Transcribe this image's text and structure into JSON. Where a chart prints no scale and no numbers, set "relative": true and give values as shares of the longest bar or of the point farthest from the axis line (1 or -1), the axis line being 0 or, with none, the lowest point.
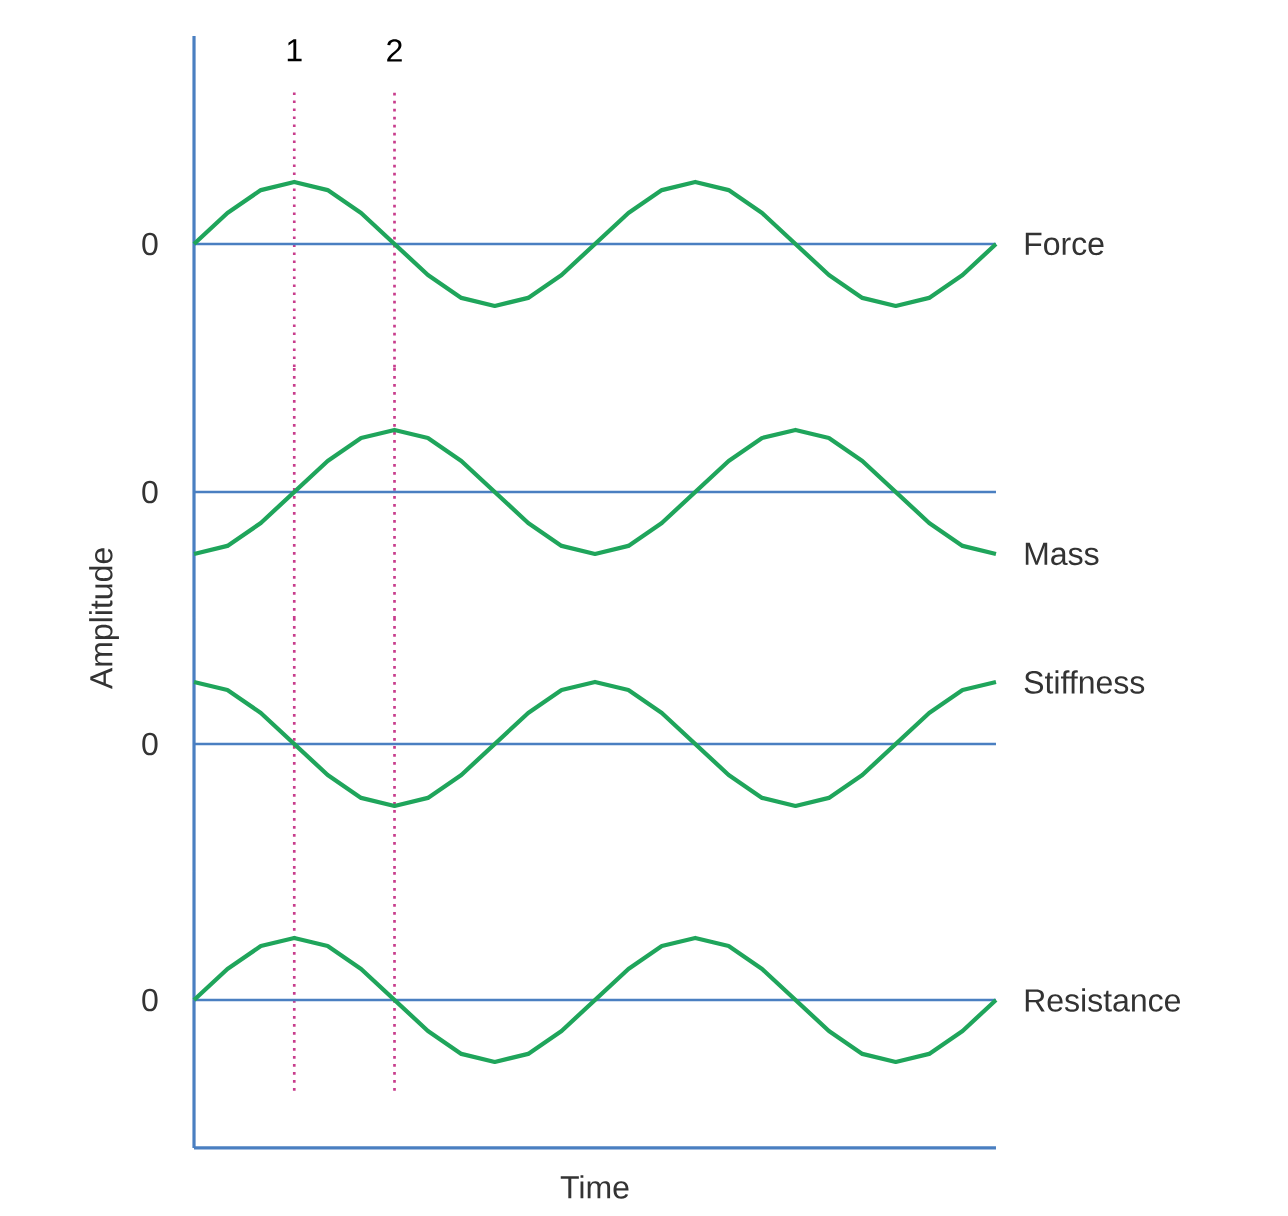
{
  "chart_data": [
    {
      "type": "line",
      "relative": true,
      "tick_labels": false,
      "marker": "none",
      "line_style": "solid",
      "categories": [
        null,
        null,
        null,
        null,
        null,
        null,
        null,
        null,
        null,
        null,
        null,
        null,
        null,
        null,
        null,
        null,
        null,
        null,
        null,
        null,
        null,
        null,
        null,
        null,
        null
      ],
      "series": [
        {
          "name": "Force",
          "color": "#1fa55b",
          "values": [
            0,
            0.5,
            0.87,
            1,
            0.87,
            0.5,
            0,
            -0.5,
            -0.87,
            -1,
            -0.87,
            -0.5,
            0,
            0.5,
            0.87,
            1,
            0.87,
            0.5,
            0,
            -0.5,
            -0.87,
            -1,
            -0.87,
            -0.5,
            0
          ]
        }
      ],
      "annotations": [
        "1",
        "2"
      ],
      "ref_lines": [
        {
          "axis": "y",
          "value": 0,
          "label": "0",
          "color": "#4a7fc1"
        }
      ]
    },
    {
      "type": "line",
      "relative": true,
      "tick_labels": false,
      "marker": "none",
      "line_style": "solid",
      "ylabel": "Amplitude",
      "categories": [
        null,
        null,
        null,
        null,
        null,
        null,
        null,
        null,
        null,
        null,
        null,
        null,
        null,
        null,
        null,
        null,
        null,
        null,
        null,
        null,
        null,
        null,
        null,
        null,
        null
      ],
      "series": [
        {
          "name": "Mass",
          "color": "#1fa55b",
          "values": [
            -1,
            -0.87,
            -0.5,
            0,
            0.5,
            0.87,
            1,
            0.87,
            0.5,
            0,
            -0.5,
            -0.87,
            -1,
            -0.87,
            -0.5,
            0,
            0.5,
            0.87,
            1,
            0.87,
            0.5,
            0,
            -0.5,
            -0.87,
            -1
          ]
        }
      ],
      "ref_lines": [
        {
          "axis": "y",
          "value": 0,
          "label": "0",
          "color": "#4a7fc1"
        }
      ]
    },
    {
      "type": "line",
      "relative": true,
      "tick_labels": false,
      "marker": "none",
      "line_style": "solid",
      "categories": [
        null,
        null,
        null,
        null,
        null,
        null,
        null,
        null,
        null,
        null,
        null,
        null,
        null,
        null,
        null,
        null,
        null,
        null,
        null,
        null,
        null,
        null,
        null,
        null,
        null
      ],
      "series": [
        {
          "name": "Stiffness",
          "color": "#1fa55b",
          "values": [
            1,
            0.87,
            0.5,
            0,
            -0.5,
            -0.87,
            -1,
            -0.87,
            -0.5,
            0,
            0.5,
            0.87,
            1,
            0.87,
            0.5,
            0,
            -0.5,
            -0.87,
            -1,
            -0.87,
            -0.5,
            0,
            0.5,
            0.87,
            1
          ]
        }
      ],
      "ref_lines": [
        {
          "axis": "y",
          "value": 0,
          "label": "0",
          "color": "#4a7fc1"
        }
      ]
    },
    {
      "type": "line",
      "relative": true,
      "tick_labels": false,
      "marker": "none",
      "line_style": "solid",
      "xlabel": "Time",
      "categories": [
        null,
        null,
        null,
        null,
        null,
        null,
        null,
        null,
        null,
        null,
        null,
        null,
        null,
        null,
        null,
        null,
        null,
        null,
        null,
        null,
        null,
        null,
        null,
        null,
        null
      ],
      "series": [
        {
          "name": "Resistance",
          "color": "#1fa55b",
          "values": [
            0,
            0.5,
            0.87,
            1,
            0.87,
            0.5,
            0,
            -0.5,
            -0.87,
            -1,
            -0.87,
            -0.5,
            0,
            0.5,
            0.87,
            1,
            0.87,
            0.5,
            0,
            -0.5,
            -0.87,
            -1,
            -0.87,
            -0.5,
            0
          ]
        }
      ],
      "ref_lines": [
        {
          "axis": "y",
          "value": 0,
          "label": "0",
          "color": "#4a7fc1"
        }
      ]
    }
  ]
}
